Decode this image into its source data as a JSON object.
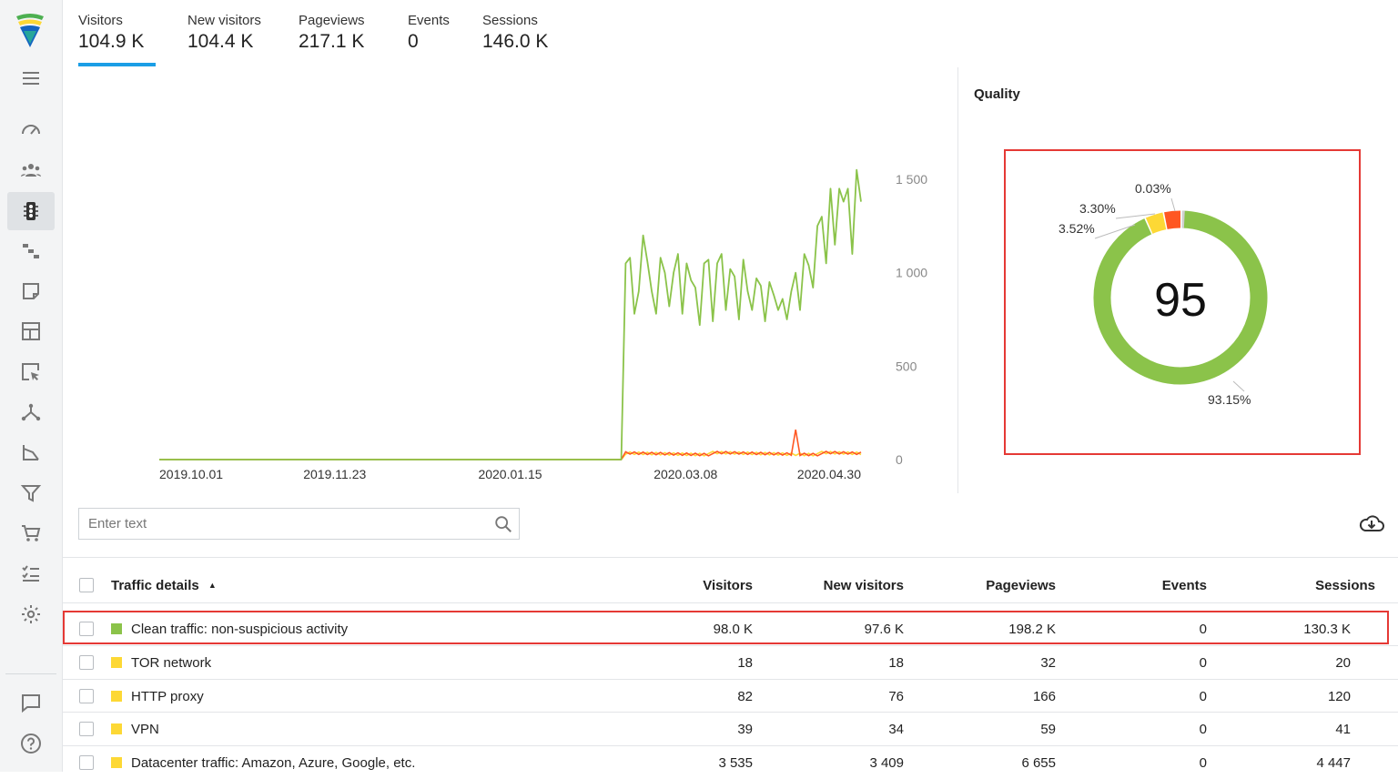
{
  "metrics": [
    {
      "label": "Visitors",
      "value": "104.9 K"
    },
    {
      "label": "New visitors",
      "value": "104.4 K"
    },
    {
      "label": "Pageviews",
      "value": "217.1 K"
    },
    {
      "label": "Events",
      "value": "0"
    },
    {
      "label": "Sessions",
      "value": "146.0 K"
    }
  ],
  "active_metric": "Visitors",
  "quality": {
    "title": "Quality",
    "score": "95",
    "slices": [
      {
        "label": "93.15%",
        "value": 93.15,
        "color": "#8bc34a"
      },
      {
        "label": "3.52%",
        "value": 3.52,
        "color": "#fdd835"
      },
      {
        "label": "3.30%",
        "value": 3.3,
        "color": "#ff5722"
      },
      {
        "label": "0.03%",
        "value": 0.03,
        "color": "#d0d0d0"
      }
    ]
  },
  "chart_data": {
    "type": "line",
    "x_tick_labels": [
      "2019.10.01",
      "2019.11.23",
      "2020.01.15",
      "2020.03.08",
      "2020.04.30"
    ],
    "y_tick_labels": [
      "0",
      "500",
      "1 000",
      "1 500"
    ],
    "ylim": [
      0,
      1500
    ],
    "legend": "none",
    "series": [
      {
        "color": "#8bc34a",
        "values": [
          0,
          0,
          0,
          0,
          0,
          0,
          0,
          0,
          0,
          0,
          0,
          0,
          0,
          0,
          0,
          0,
          0,
          0,
          0,
          0,
          0,
          0,
          0,
          0,
          0,
          0,
          0,
          0,
          0,
          0,
          0,
          0,
          0,
          0,
          0,
          0,
          0,
          0,
          0,
          0,
          0,
          0,
          0,
          0,
          0,
          0,
          0,
          0,
          0,
          0,
          0,
          0,
          0,
          0,
          0,
          0,
          0,
          0,
          0,
          0,
          0,
          0,
          0,
          0,
          0,
          0,
          0,
          0,
          0,
          0,
          0,
          0,
          0,
          0,
          0,
          0,
          0,
          0,
          0,
          0,
          0,
          0,
          0,
          0,
          0,
          0,
          0,
          0,
          0,
          0,
          0,
          0,
          0,
          0,
          0,
          0,
          0,
          0,
          0,
          0,
          0,
          0,
          0,
          0,
          0,
          0,
          0,
          1050,
          1080,
          780,
          900,
          1200,
          1060,
          900,
          780,
          1080,
          1000,
          820,
          1000,
          1100,
          780,
          1050,
          960,
          920,
          720,
          1050,
          1070,
          740,
          1050,
          1100,
          800,
          1020,
          980,
          750,
          1070,
          900,
          800,
          970,
          930,
          740,
          950,
          880,
          800,
          860,
          750,
          900,
          1000,
          800,
          1100,
          1040,
          920,
          1250,
          1300,
          1050,
          1450,
          1150,
          1450,
          1380,
          1450,
          1100,
          1550,
          1380
        ]
      }
    ]
  },
  "search": {
    "placeholder": "Enter text"
  },
  "table": {
    "headers": {
      "name": "Traffic details",
      "sort_indicator": "▲",
      "visitors": "Visitors",
      "new_visitors": "New visitors",
      "pageviews": "Pageviews",
      "events": "Events",
      "sessions": "Sessions"
    },
    "rows": [
      {
        "name": "Clean traffic: non-suspicious activity",
        "color": "#8bc34a",
        "visitors": "98.0 K",
        "new_visitors": "97.6 K",
        "pageviews": "198.2 K",
        "events": "0",
        "sessions": "130.3 K"
      },
      {
        "name": "TOR network",
        "color": "#fdd835",
        "visitors": "18",
        "new_visitors": "18",
        "pageviews": "32",
        "events": "0",
        "sessions": "20"
      },
      {
        "name": "HTTP proxy",
        "color": "#fdd835",
        "visitors": "82",
        "new_visitors": "76",
        "pageviews": "166",
        "events": "0",
        "sessions": "120"
      },
      {
        "name": "VPN",
        "color": "#fdd835",
        "visitors": "39",
        "new_visitors": "34",
        "pageviews": "59",
        "events": "0",
        "sessions": "41"
      },
      {
        "name": "Datacenter traffic: Amazon, Azure, Google, etc.",
        "color": "#fdd835",
        "visitors": "3 535",
        "new_visitors": "3 409",
        "pageviews": "6 655",
        "events": "0",
        "sessions": "4 447"
      }
    ]
  },
  "sidebar_icons": [
    "menu-icon",
    "dashboard-icon",
    "audience-icon",
    "traffic-light-icon",
    "sources-icon",
    "note-icon",
    "layout-icon",
    "click-map-icon",
    "hierarchy-icon",
    "funnel-graph-icon",
    "filter-icon",
    "cart-icon",
    "checklist-icon",
    "gear-icon",
    "chat-icon",
    "help-icon"
  ]
}
